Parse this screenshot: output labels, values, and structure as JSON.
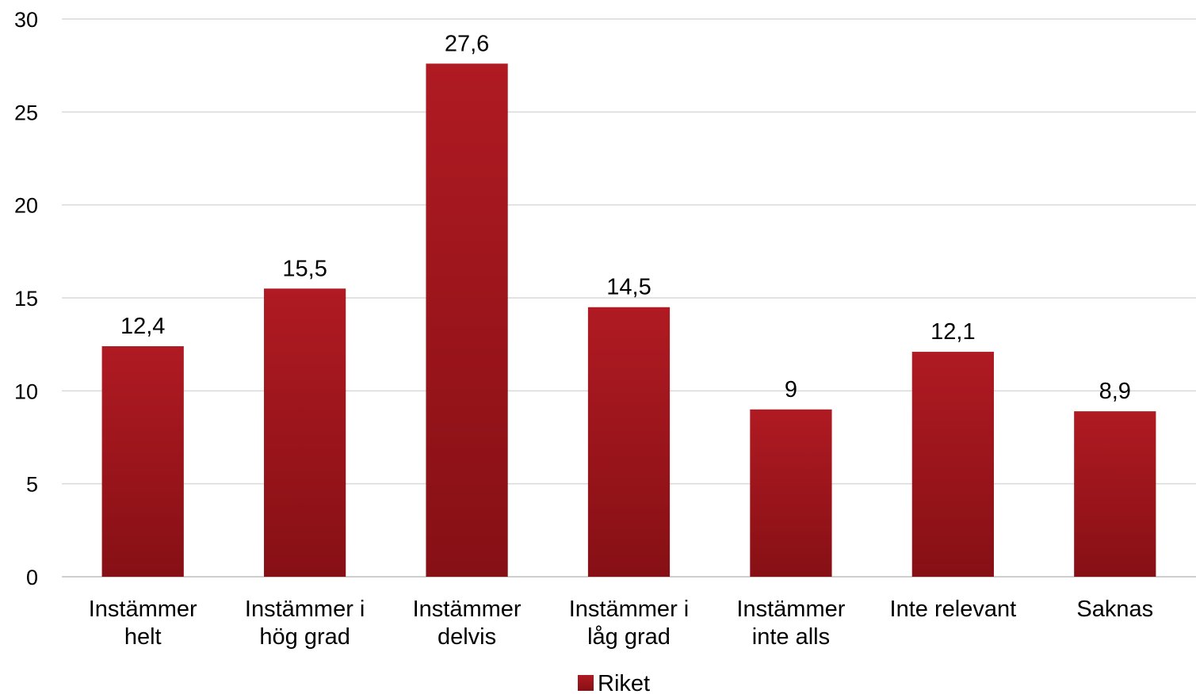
{
  "chart_data": {
    "type": "bar",
    "title": "",
    "xlabel": "",
    "ylabel": "",
    "categories": [
      [
        "Instämmer",
        "helt"
      ],
      [
        "Instämmer i",
        "hög grad"
      ],
      [
        "Instämmer",
        "delvis"
      ],
      [
        "Instämmer i",
        "låg grad"
      ],
      [
        "Instämmer",
        "inte alls"
      ],
      [
        "Inte relevant"
      ],
      [
        "Saknas"
      ]
    ],
    "series": [
      {
        "name": "Riket",
        "values": [
          12.4,
          15.5,
          27.6,
          14.5,
          9,
          12.1,
          8.9
        ],
        "value_labels": [
          "12,4",
          "15,5",
          "27,6",
          "14,5",
          "9",
          "12,1",
          "8,9"
        ],
        "color": "#A8161E"
      }
    ],
    "ylim": [
      0,
      30
    ],
    "yticks": [
      0,
      5,
      10,
      15,
      20,
      25,
      30
    ],
    "grid": true,
    "gridline_color": "#D9D9D9",
    "legend_position": "bottom-center"
  }
}
